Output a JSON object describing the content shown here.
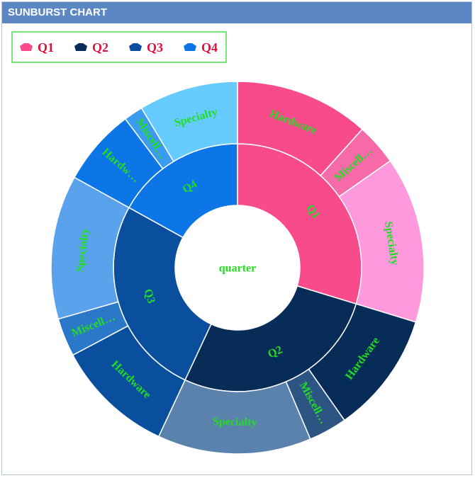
{
  "header": {
    "title": "SUNBURST CHART"
  },
  "chart_data": {
    "type": "sunburst",
    "center_label": "quarter",
    "legend": "top-left",
    "label_color": "#22dd22",
    "series": [
      {
        "name": "Q1",
        "color": "#f74b8b",
        "value": 107,
        "children": [
          {
            "name": "Hardware",
            "color": "#f74b8b",
            "value": 42
          },
          {
            "name": "Miscell…",
            "color": "#f76aa8",
            "value": 13
          },
          {
            "name": "Specialty",
            "color": "#ff99dd",
            "value": 52
          }
        ]
      },
      {
        "name": "Q2",
        "color": "#072c58",
        "value": 98,
        "children": [
          {
            "name": "Hardware",
            "color": "#072c58",
            "value": 38
          },
          {
            "name": "Miscell…",
            "color": "#2d5583",
            "value": 12
          },
          {
            "name": "Specialty",
            "color": "#5a82ac",
            "value": 48
          }
        ]
      },
      {
        "name": "Q3",
        "color": "#0a4f9e",
        "value": 94,
        "children": [
          {
            "name": "Hardware",
            "color": "#0a4f9e",
            "value": 37
          },
          {
            "name": "Miscell…",
            "color": "#2c78c8",
            "value": 12
          },
          {
            "name": "Specialty",
            "color": "#5aa2ec",
            "value": 45
          }
        ]
      },
      {
        "name": "Q4",
        "color": "#0c76e6",
        "value": 61,
        "children": [
          {
            "name": "Hardw…",
            "color": "#0c76e6",
            "value": 24
          },
          {
            "name": "Miscell…",
            "color": "#3a9bf0",
            "value": 6
          },
          {
            "name": "Specialty",
            "color": "#66ccff",
            "value": 31
          }
        ]
      }
    ]
  }
}
